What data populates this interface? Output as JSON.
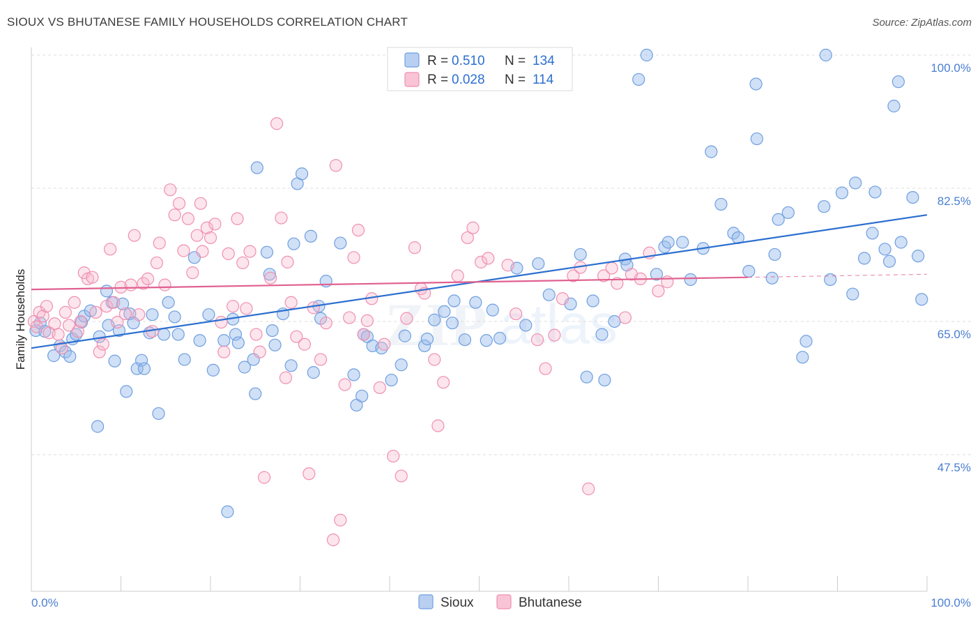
{
  "title": "SIOUX VS BHUTANESE FAMILY HOUSEHOLDS CORRELATION CHART",
  "source": "Source: ZipAtlas.com",
  "watermark": {
    "zip": "ZIP",
    "atlas": "atlas"
  },
  "colors": {
    "sioux": "#6f9fe0",
    "sioux_line": "#2b6fcf",
    "bhutanese": "#f08fb0",
    "bhutanese_line": "#e0608f",
    "tick_text": "#4a7fd0"
  },
  "legend_top": [
    {
      "r_label": "R = ",
      "r_value": "0.510",
      "n_label": "N = ",
      "n_value": "134"
    },
    {
      "r_label": "R = ",
      "r_value": "0.028",
      "n_label": "N = ",
      "n_value": "114"
    }
  ],
  "chart_data": {
    "type": "scatter",
    "title": "SIOUX VS BHUTANESE FAMILY HOUSEHOLDS CORRELATION CHART",
    "xlabel": "",
    "ylabel": "Family Households",
    "xlim": [
      0,
      100
    ],
    "ylim": [
      30,
      100
    ],
    "x_tick_labels": [
      "0.0%",
      "100.0%"
    ],
    "y_ticks": [
      47.5,
      65.0,
      82.5,
      100.0
    ],
    "y_tick_labels": [
      "47.5%",
      "65.0%",
      "82.5%",
      "100.0%"
    ],
    "grid": "horizontal dashed",
    "legend_position": "top-center, bottom-center",
    "series": [
      {
        "name": "Sioux",
        "trend": {
          "x": [
            0,
            100
          ],
          "y": [
            61.5,
            79.0
          ]
        },
        "points": [
          [
            0.5,
            63.8
          ],
          [
            1.0,
            64.8
          ],
          [
            1.5,
            63.7
          ],
          [
            2.5,
            60.5
          ],
          [
            3.2,
            61.8
          ],
          [
            3.8,
            61.0
          ],
          [
            4.3,
            60.4
          ],
          [
            4.6,
            62.7
          ],
          [
            5.0,
            63.3
          ],
          [
            5.6,
            64.9
          ],
          [
            5.9,
            65.7
          ],
          [
            6.6,
            66.4
          ],
          [
            7.4,
            51.2
          ],
          [
            7.6,
            63.0
          ],
          [
            8.4,
            69.0
          ],
          [
            8.6,
            64.5
          ],
          [
            9.0,
            67.5
          ],
          [
            9.3,
            59.8
          ],
          [
            9.8,
            63.8
          ],
          [
            10.2,
            67.3
          ],
          [
            10.6,
            55.8
          ],
          [
            11.0,
            66.0
          ],
          [
            11.4,
            64.8
          ],
          [
            11.8,
            58.8
          ],
          [
            12.3,
            59.9
          ],
          [
            12.6,
            58.8
          ],
          [
            13.2,
            63.5
          ],
          [
            13.5,
            65.9
          ],
          [
            14.2,
            52.9
          ],
          [
            14.8,
            63.3
          ],
          [
            15.3,
            67.5
          ],
          [
            16.0,
            65.6
          ],
          [
            16.4,
            63.3
          ],
          [
            17.1,
            60.0
          ],
          [
            18.2,
            73.4
          ],
          [
            18.8,
            62.5
          ],
          [
            19.8,
            65.9
          ],
          [
            20.3,
            58.6
          ],
          [
            21.5,
            62.5
          ],
          [
            21.9,
            40.0
          ],
          [
            22.5,
            65.3
          ],
          [
            22.8,
            63.3
          ],
          [
            23.1,
            62.2
          ],
          [
            23.8,
            59.0
          ],
          [
            24.8,
            60.0
          ],
          [
            25.0,
            55.5
          ],
          [
            25.2,
            85.2
          ],
          [
            26.3,
            74.1
          ],
          [
            26.6,
            71.2
          ],
          [
            26.9,
            63.8
          ],
          [
            27.2,
            61.9
          ],
          [
            28.1,
            66.0
          ],
          [
            29.0,
            59.2
          ],
          [
            29.3,
            75.2
          ],
          [
            29.7,
            83.1
          ],
          [
            30.2,
            84.4
          ],
          [
            31.2,
            76.2
          ],
          [
            31.5,
            58.3
          ],
          [
            32.1,
            67.0
          ],
          [
            32.3,
            65.4
          ],
          [
            32.9,
            70.3
          ],
          [
            34.5,
            75.3
          ],
          [
            36.0,
            58.0
          ],
          [
            36.3,
            54.0
          ],
          [
            36.9,
            55.2
          ],
          [
            37.1,
            63.3
          ],
          [
            37.5,
            63.0
          ],
          [
            38.1,
            61.8
          ],
          [
            39.1,
            61.5
          ],
          [
            40.2,
            57.3
          ],
          [
            41.3,
            59.3
          ],
          [
            41.7,
            63.1
          ],
          [
            43.9,
            61.8
          ],
          [
            44.2,
            62.7
          ],
          [
            45.0,
            65.2
          ],
          [
            46.1,
            66.3
          ],
          [
            47.0,
            64.8
          ],
          [
            47.2,
            67.7
          ],
          [
            48.4,
            62.6
          ],
          [
            49.6,
            67.5
          ],
          [
            50.8,
            62.5
          ],
          [
            51.5,
            66.5
          ],
          [
            52.3,
            62.8
          ],
          [
            54.2,
            72.0
          ],
          [
            55.2,
            64.5
          ],
          [
            56.6,
            72.6
          ],
          [
            57.8,
            68.5
          ],
          [
            60.2,
            67.3
          ],
          [
            61.3,
            73.8
          ],
          [
            62.0,
            57.7
          ],
          [
            62.7,
            67.7
          ],
          [
            63.7,
            63.3
          ],
          [
            64.0,
            57.3
          ],
          [
            65.1,
            65.0
          ],
          [
            66.3,
            73.2
          ],
          [
            66.5,
            72.4
          ],
          [
            67.8,
            96.8
          ],
          [
            68.7,
            100.0
          ],
          [
            69.8,
            71.2
          ],
          [
            70.7,
            74.8
          ],
          [
            71.1,
            75.4
          ],
          [
            72.7,
            75.4
          ],
          [
            73.6,
            70.5
          ],
          [
            75.0,
            74.6
          ],
          [
            75.9,
            87.3
          ],
          [
            77.0,
            80.4
          ],
          [
            78.4,
            76.6
          ],
          [
            78.9,
            76.0
          ],
          [
            80.1,
            71.6
          ],
          [
            80.9,
            96.2
          ],
          [
            81.0,
            89.0
          ],
          [
            82.7,
            70.7
          ],
          [
            83.0,
            73.8
          ],
          [
            83.4,
            78.4
          ],
          [
            84.5,
            79.3
          ],
          [
            86.1,
            60.3
          ],
          [
            86.5,
            62.4
          ],
          [
            88.5,
            80.1
          ],
          [
            88.7,
            100.0
          ],
          [
            89.2,
            70.5
          ],
          [
            90.5,
            81.9
          ],
          [
            91.7,
            68.6
          ],
          [
            92.0,
            83.2
          ],
          [
            93.0,
            73.3
          ],
          [
            93.9,
            76.6
          ],
          [
            94.2,
            82.0
          ],
          [
            95.3,
            74.5
          ],
          [
            95.8,
            72.9
          ],
          [
            96.3,
            93.3
          ],
          [
            96.8,
            96.5
          ],
          [
            97.1,
            75.4
          ],
          [
            98.4,
            81.3
          ],
          [
            99.0,
            73.6
          ],
          [
            99.4,
            67.9
          ]
        ]
      },
      {
        "name": "Bhutanese",
        "trend": {
          "x": [
            0,
            80
          ],
          "y": [
            69.2,
            70.8
          ]
        },
        "trend_dashed_extension": {
          "x": [
            80,
            100
          ],
          "y": [
            70.8,
            71.2
          ]
        },
        "points": [
          [
            0.3,
            65.0
          ],
          [
            0.6,
            64.3
          ],
          [
            0.9,
            66.2
          ],
          [
            1.3,
            65.7
          ],
          [
            1.7,
            67.0
          ],
          [
            2.0,
            63.5
          ],
          [
            2.6,
            64.7
          ],
          [
            3.0,
            63.3
          ],
          [
            3.4,
            61.5
          ],
          [
            3.8,
            66.2
          ],
          [
            4.2,
            64.5
          ],
          [
            4.8,
            67.5
          ],
          [
            5.2,
            63.7
          ],
          [
            5.5,
            65.0
          ],
          [
            5.9,
            71.4
          ],
          [
            6.3,
            70.6
          ],
          [
            6.8,
            70.8
          ],
          [
            7.2,
            66.2
          ],
          [
            7.6,
            61.0
          ],
          [
            8.0,
            62.0
          ],
          [
            8.4,
            67.0
          ],
          [
            8.8,
            74.5
          ],
          [
            9.2,
            67.5
          ],
          [
            9.6,
            64.9
          ],
          [
            10.0,
            69.5
          ],
          [
            10.5,
            66.0
          ],
          [
            11.1,
            69.8
          ],
          [
            11.5,
            76.3
          ],
          [
            12.0,
            65.9
          ],
          [
            12.5,
            70.0
          ],
          [
            13.0,
            70.6
          ],
          [
            13.5,
            63.7
          ],
          [
            14.0,
            72.7
          ],
          [
            14.3,
            75.3
          ],
          [
            14.9,
            69.8
          ],
          [
            15.5,
            82.3
          ],
          [
            16.0,
            79.0
          ],
          [
            16.5,
            80.5
          ],
          [
            17.0,
            74.3
          ],
          [
            17.5,
            78.5
          ],
          [
            18.0,
            71.4
          ],
          [
            18.5,
            76.3
          ],
          [
            18.9,
            80.5
          ],
          [
            19.1,
            74.2
          ],
          [
            19.6,
            77.3
          ],
          [
            20.0,
            76.0
          ],
          [
            20.5,
            77.8
          ],
          [
            21.2,
            64.9
          ],
          [
            21.5,
            61.0
          ],
          [
            22.0,
            73.9
          ],
          [
            22.5,
            67.0
          ],
          [
            23.0,
            78.5
          ],
          [
            23.6,
            72.7
          ],
          [
            24.0,
            66.7
          ],
          [
            24.4,
            74.2
          ],
          [
            25.1,
            63.3
          ],
          [
            25.5,
            61.0
          ],
          [
            26.0,
            44.5
          ],
          [
            26.7,
            70.7
          ],
          [
            27.4,
            91.0
          ],
          [
            27.9,
            78.6
          ],
          [
            28.4,
            57.6
          ],
          [
            28.6,
            72.8
          ],
          [
            29.0,
            67.5
          ],
          [
            29.6,
            63.0
          ],
          [
            30.5,
            62.0
          ],
          [
            31.0,
            45.0
          ],
          [
            31.5,
            66.8
          ],
          [
            32.3,
            60.0
          ],
          [
            32.9,
            64.8
          ],
          [
            33.7,
            36.3
          ],
          [
            34.0,
            85.5
          ],
          [
            34.5,
            38.9
          ],
          [
            35.0,
            56.7
          ],
          [
            35.5,
            65.5
          ],
          [
            36.0,
            73.4
          ],
          [
            36.5,
            77.0
          ],
          [
            37.1,
            63.3
          ],
          [
            37.5,
            65.1
          ],
          [
            38.0,
            68.0
          ],
          [
            38.9,
            56.3
          ],
          [
            39.4,
            62.0
          ],
          [
            40.4,
            47.3
          ],
          [
            41.3,
            44.7
          ],
          [
            41.9,
            65.4
          ],
          [
            42.8,
            74.7
          ],
          [
            43.5,
            69.3
          ],
          [
            43.9,
            68.7
          ],
          [
            45.0,
            60.0
          ],
          [
            45.4,
            51.3
          ],
          [
            46.0,
            57.0
          ],
          [
            47.6,
            71.0
          ],
          [
            48.7,
            76.0
          ],
          [
            49.3,
            77.3
          ],
          [
            50.2,
            72.8
          ],
          [
            51.0,
            73.3
          ],
          [
            53.2,
            72.4
          ],
          [
            54.1,
            66.0
          ],
          [
            56.5,
            62.6
          ],
          [
            57.4,
            58.8
          ],
          [
            58.4,
            63.2
          ],
          [
            59.3,
            68.0
          ],
          [
            60.5,
            71.0
          ],
          [
            61.3,
            72.1
          ],
          [
            62.2,
            43.0
          ],
          [
            63.9,
            71.0
          ],
          [
            64.8,
            72.0
          ],
          [
            65.4,
            70.0
          ],
          [
            66.3,
            65.5
          ],
          [
            67.0,
            71.2
          ],
          [
            68.0,
            70.6
          ],
          [
            69.0,
            74.0
          ],
          [
            70.0,
            69.0
          ],
          [
            71.0,
            70.2
          ]
        ]
      }
    ]
  }
}
